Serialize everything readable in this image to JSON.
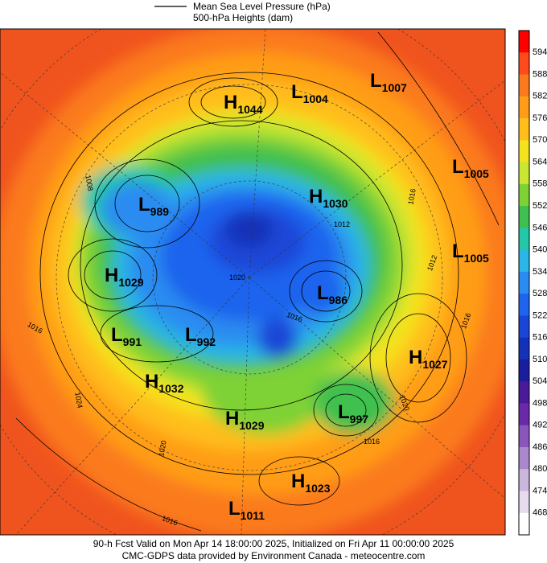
{
  "legend": {
    "line_label": "Mean Sea Level Pressure (hPa)",
    "fill_label": "500-hPa Heights (dam)"
  },
  "colorbar": {
    "ticks": [
      594,
      588,
      582,
      576,
      570,
      564,
      558,
      552,
      546,
      540,
      534,
      528,
      522,
      516,
      510,
      504,
      498,
      492,
      486,
      480,
      474,
      468
    ],
    "colors": [
      "#ff0000",
      "#ff4a1c",
      "#fb7a1e",
      "#ff9d18",
      "#ffbe1a",
      "#f5e21e",
      "#c8e632",
      "#7fd234",
      "#3fc050",
      "#22c8a8",
      "#2ab6e6",
      "#2a8cf0",
      "#1f64ee",
      "#1a46d8",
      "#1432b8",
      "#1a1e9c",
      "#4a1a9a",
      "#6a2aa8",
      "#8a56bc",
      "#ab88cc",
      "#cbb6dc",
      "#e6dcee",
      "#ffffff"
    ]
  },
  "centers": [
    {
      "type": "H",
      "value": "1044"
    },
    {
      "type": "L",
      "value": "1004"
    },
    {
      "type": "L",
      "value": "1007"
    },
    {
      "type": "L",
      "value": "1005"
    },
    {
      "type": "H",
      "value": "1030"
    },
    {
      "type": "L",
      "value": "989"
    },
    {
      "type": "L",
      "value": "1005"
    },
    {
      "type": "H",
      "value": "1029"
    },
    {
      "type": "L",
      "value": "986"
    },
    {
      "type": "L",
      "value": "991"
    },
    {
      "type": "L",
      "value": "992"
    },
    {
      "type": "H",
      "value": "1027"
    },
    {
      "type": "H",
      "value": "1032"
    },
    {
      "type": "L",
      "value": "997"
    },
    {
      "type": "H",
      "value": "1029"
    },
    {
      "type": "H",
      "value": "1023"
    },
    {
      "type": "L",
      "value": "1011"
    }
  ],
  "isobar_labels": [
    "1008",
    "1016",
    "1024",
    "1020",
    "1016",
    "1016",
    "1020",
    "1016",
    "1012",
    "1016",
    "1012",
    "1020",
    "1016"
  ],
  "footer": [
    "90-h Fcst Valid on Mon Apr 14 18:00:00 2025, Initialized on Fri Apr 11 00:00:00 2025",
    "CMC-GDPS data provided by Environment Canada - meteocentre.com"
  ]
}
